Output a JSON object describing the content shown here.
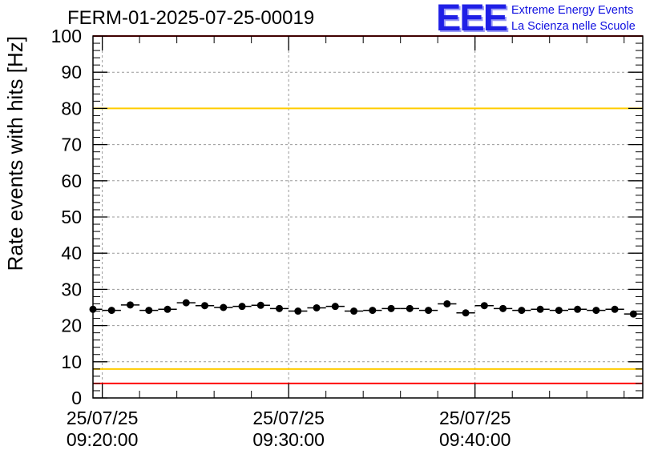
{
  "title": "FERM-01-2025-07-25-00019",
  "logo": {
    "mark": "EEE",
    "line1": "Extreme Energy Events",
    "line2": "La Scienza nelle Scuole",
    "color": "#1f1fe6"
  },
  "chart_data": {
    "type": "scatter",
    "ylabel": "Rate events with hits [Hz]",
    "xlabel": "",
    "ylim": [
      0,
      100
    ],
    "yticks": [
      0,
      10,
      20,
      30,
      40,
      50,
      60,
      70,
      80,
      90,
      100
    ],
    "xlim": [
      "09:19:30",
      "09:49:00"
    ],
    "xticks": [
      {
        "date": "25/07/25",
        "time": "09:20:00"
      },
      {
        "date": "25/07/25",
        "time": "09:30:00"
      },
      {
        "date": "25/07/25",
        "time": "09:40:00"
      }
    ],
    "grid": true,
    "reference_lines": [
      {
        "value": 100,
        "color": "#ff0000"
      },
      {
        "value": 80,
        "color": "#ffcc00"
      },
      {
        "value": 8,
        "color": "#ffcc00"
      },
      {
        "value": 4,
        "color": "#ff0000"
      }
    ],
    "series": [
      {
        "x": [
          "09:19:30",
          "09:20:30",
          "09:21:30",
          "09:22:30",
          "09:23:30",
          "09:24:30",
          "09:25:30",
          "09:26:30",
          "09:27:30",
          "09:28:30",
          "09:29:30",
          "09:30:30",
          "09:31:30",
          "09:32:30",
          "09:33:30",
          "09:34:30",
          "09:35:30",
          "09:36:30",
          "09:37:30",
          "09:38:30",
          "09:39:30",
          "09:40:30",
          "09:41:30",
          "09:42:30",
          "09:43:30",
          "09:44:30",
          "09:45:30",
          "09:46:30",
          "09:47:30",
          "09:48:30"
        ],
        "y": [
          24.5,
          24.2,
          25.7,
          24.2,
          24.5,
          26.3,
          25.5,
          25.0,
          25.3,
          25.6,
          24.7,
          24.0,
          24.9,
          25.3,
          24.0,
          24.2,
          24.7,
          24.7,
          24.2,
          26.0,
          23.5,
          25.5,
          24.7,
          24.2,
          24.5,
          24.2,
          24.5,
          24.2,
          24.5,
          23.2
        ],
        "x_error_minutes": 0.5,
        "color": "#000000"
      }
    ]
  }
}
